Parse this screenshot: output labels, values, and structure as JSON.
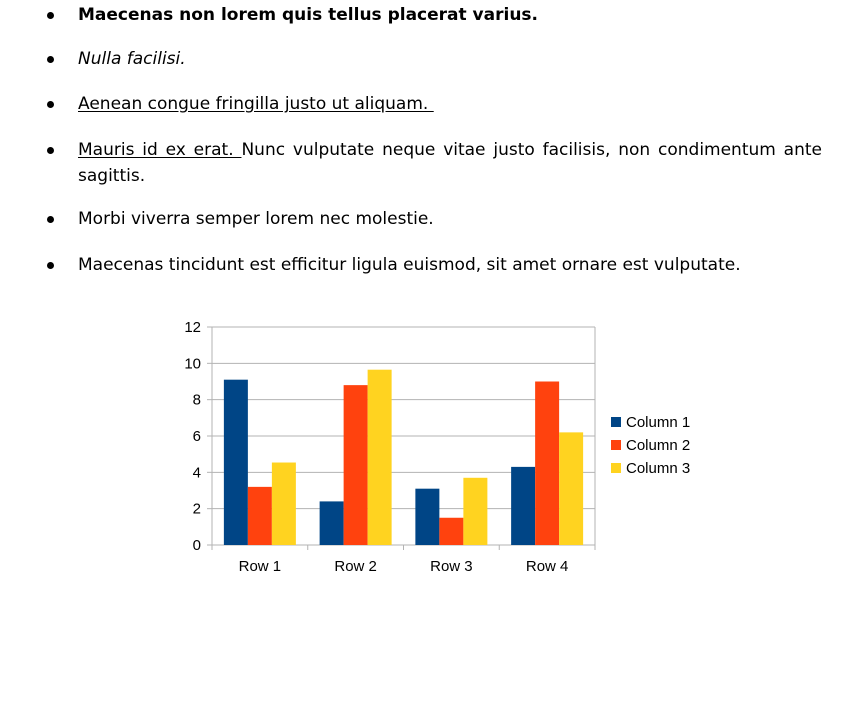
{
  "bullets": [
    {
      "style": "bold",
      "text": "Maecenas non lorem quis tellus placerat varius."
    },
    {
      "style": "italic",
      "text": "Nulla facilisi."
    },
    {
      "style": "underline",
      "text": "Aenean congue fringilla justo ut aliquam. "
    },
    {
      "style": "mixed",
      "underlined": "Mauris id ex erat. ",
      "rest": "Nunc vulputate neque vitae justo facilisis, non condimentum ante sagittis."
    },
    {
      "style": "normal",
      "text": "Morbi viverra semper lorem nec molestie."
    },
    {
      "style": "normal",
      "text": "Maecenas tincidunt est efficitur ligula euismod, sit amet ornare est vulputate."
    }
  ],
  "chart_data": {
    "type": "bar",
    "categories": [
      "Row 1",
      "Row 2",
      "Row 3",
      "Row 4"
    ],
    "series": [
      {
        "name": "Column 1",
        "values": [
          9.1,
          2.4,
          3.1,
          4.3
        ],
        "color": "#004586"
      },
      {
        "name": "Column 2",
        "values": [
          3.2,
          8.8,
          1.5,
          9.0
        ],
        "color": "#ff420e"
      },
      {
        "name": "Column 3",
        "values": [
          4.54,
          9.65,
          3.7,
          6.2
        ],
        "color": "#ffd320"
      }
    ],
    "ylim": [
      0,
      12
    ],
    "yticks": [
      "0",
      "2",
      "4",
      "6",
      "8",
      "10",
      "12"
    ],
    "grid": true,
    "legend": "right"
  }
}
